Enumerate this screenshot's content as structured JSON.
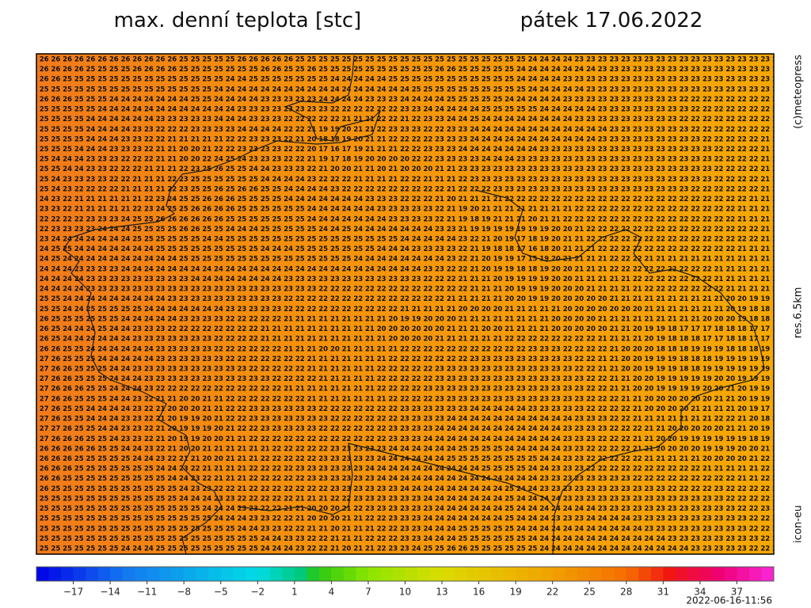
{
  "header": {
    "title": "max. denní teplota [stc]",
    "date": "pátek 17.06.2022"
  },
  "side": {
    "credit": "(c)meteopress",
    "resolution": "res.6.5km",
    "model": "icon-eu"
  },
  "map": {
    "rows": [
      "7 26 26 26 26 26 26 26 26 26 26 26 26 25 25 25 25 25 26 26 26 26 26 25 25 25 25 25 25 25 25 25 25 25 25 25 25 25 25 25 25 25 25 24 24 24 24 23 23 23 23 23 23 23 23 23 23 23 23 23 23 23 23 23 2",
      "6 26 26 26 26 25 25 25 25 26 26 26 26 25 25 25 25 25 25 25 26 26 25 25 26 25 25 25 25 25 25 25 25 25 25 26 26 25 25 25 25 25 24 24 24 24 24 24 24 23 23 23 23 23 23 23 23 23 23 23 23 23 23 23 2",
      "6 26 26 25 25 25 25 25 25 25 25 25 25 25 25 25 25 24 24 25 25 25 25 25 25 25 24 24 24 24 24 25 25 25 25 25 25 25 25 25 25 25 24 24 24 24 23 23 23 23 23 23 23 23 23 23 23 23 23 23 23 23 23 23 2",
      "6 25 25 25 25 25 25 25 25 25 25 25 25 25 25 25 24 24 24 24 24 24 24 24 24 24 24 24 24 24 24 24 24 25 25 25 25 25 25 25 25 25 25 24 24 24 24 24 23 23 23 23 23 23 23 23 23 23 23 23 23 23 23 23 2",
      "6 26 26 26 25 25 25 24 24 24 24 24 24 24 25 25 24 24 24 24 23 23 23 23 23 24 24 24 24 23 23 23 24 24 24 24 25 25 25 25 25 24 24 24 24 24 23 23 23 23 23 23 23 23 23 23 22 22 22 22 22 22 22 22 2",
      "6 25 25 25 25 25 24 24 24 24 24 24 24 24 24 24 24 24 23 23 23 23 23 23 23 23 22 22 22 22 22 22 23 23 24 24 24 24 24 25 25 25 25 25 24 24 24 24 24 23 23 23 23 23 23 23 23 22 22 22 22 22 22 22 2",
      "6 25 25 25 25 24 24 24 24 24 24 23 23 23 23 23 24 24 24 23 23 23 22 22 22 22 22 21 21 21 22 22 21 22 23 23 24 24 25 24 24 24 24 24 24 24 24 23 23 23 23 23 23 23 23 23 22 22 22 22 22 22 22 22 2",
      "6 25 25 25 25 24 24 24 24 23 23 22 22 22 23 23 23 23 24 24 24 24 22 22 21 19 19 20 21 21 22 23 23 23 22 22 23 23 24 24 24 24 24 24 24 24 24 24 24 24 23 23 23 23 23 23 23 22 22 22 22 22 22 22 2",
      "5 25 25 25 25 24 24 24 23 23 22 22 21 21 21 21 21 22 22 23 23 23 22 21 20 18 18 19 20 21 21 22 22 22 22 23 23 23 24 24 24 24 24 24 24 24 24 24 24 23 23 23 23 23 23 23 23 23 22 22 22 22 22 21 2",
      "5 25 25 25 24 24 24 23 23 23 22 21 21 20 20 21 22 22 23 23 23 23 22 22 20 17 16 17 19 21 21 21 22 22 23 23 23 24 24 24 24 24 24 24 23 23 23 23 23 23 23 23 23 23 23 23 23 23 23 22 22 22 22 21 2",
      "5 25 24 24 24 23 23 23 22 22 22 21 21 20 20 22 24 25 24 23 23 23 22 22 21 19 17 18 19 20 20 20 20 22 22 23 23 23 23 24 24 24 23 23 23 23 23 23 23 23 23 23 23 23 23 23 23 23 23 22 22 22 22 21 2",
      "4 25 25 24 24 23 23 22 22 22 21 21 21 22 23 25 26 25 25 24 24 23 23 23 22 21 20 20 21 21 20 21 20 20 20 21 21 23 23 23 23 23 23 23 23 23 23 23 23 23 23 23 23 23 23 23 23 23 23 22 22 22 22 21 2",
      "4 25 24 23 23 23 23 22 22 21 21 21 22 23 25 25 25 25 25 25 24 24 24 24 23 22 22 22 21 21 21 21 22 22 21 21 21 22 23 23 23 23 23 23 23 23 23 23 23 23 23 23 23 23 23 23 23 23 23 22 22 22 22 21 2",
      "4 25 24 23 22 22 22 22 21 21 21 21 22 23 25 25 26 25 26 26 25 25 24 24 24 24 23 22 22 22 22 22 22 22 22 22 21 22 22 22 23 23 23 23 23 23 23 23 23 23 23 23 23 23 23 23 23 22 22 22 22 22 22 21 2",
      "4 24 23 22 21 21 21 21 21 21 22 23 24 25 25 26 26 26 25 25 25 25 24 24 24 24 24 24 24 23 23 23 22 22 22 21 20 21 21 21 21 22 22 22 22 22 22 22 22 22 22 22 22 22 22 22 22 22 22 22 22 22 21 21 2",
      "3 23 23 22 21 21 21 21 21 22 23 24 25 25 26 26 26 26 25 25 25 25 25 25 24 24 24 24 24 24 23 23 23 23 23 22 21 19 20 21 21 21 21 21 21 21 21 22 22 22 22 22 22 22 22 22 22 22 22 22 22 21 21 21 2",
      "3 22 22 22 22 23 23 23 24 25 25 26 26 26 26 26 26 25 25 25 25 25 25 25 24 24 24 24 24 24 24 23 23 23 23 22 21 19 18 19 21 21 21 20 21 21 22 22 22 22 22 22 22 22 22 22 22 22 22 22 22 21 21 21 2",
      "3 22 23 23 23 23 24 24 24 25 25 25 25 26 26 25 25 24 24 24 25 25 25 25 25 24 24 25 24 24 24 24 24 24 24 23 23 21 19 19 19 19 19 19 19 20 20 21 22 22 22 22 22 22 22 22 22 22 22 22 22 22 22 21 2",
      "3 23 24 24 24 24 24 24 24 25 25 25 25 25 25 24 24 25 25 25 25 25 25 25 25 25 25 25 25 25 25 25 24 24 24 24 24 23 22 21 20 19 17 18 19 20 21 21 22 22 22 22 22 22 22 22 22 22 22 22 22 22 22 21 2",
      "4 24 25 25 24 24 24 24 24 24 24 25 25 25 25 25 25 25 25 25 24 24 24 25 25 25 25 25 25 25 24 24 24 23 23 23 23 22 21 19 18 18 17 16 18 20 21 21 21 22 22 22 22 22 22 22 22 22 22 22 22 21 21 21 2",
      "4 24 25 24 24 24 24 24 24 24 24 24 24 25 25 25 25 25 25 25 25 25 25 25 25 25 25 25 24 24 24 24 24 24 24 24 23 22 21 20 19 19 17 15 19 20 21 21 21 21 22 22 22 21 21 21 21 21 21 21 21 21 21 21 2",
      "3 24 24 24 23 23 23 23 24 24 24 24 24 24 24 24 24 24 24 24 24 24 24 24 24 24 24 24 24 24 24 24 24 24 23 23 22 22 21 20 19 19 18 18 19 20 20 21 21 21 22 22 22 22 22 22 22 22 22 21 21 21 21 21 2",
      "3 24 24 24 24 23 23 23 23 23 23 23 23 23 24 24 24 24 24 24 24 24 23 23 23 23 23 23 23 23 23 23 23 23 22 22 22 21 21 21 20 19 19 19 19 20 20 21 21 21 21 21 22 22 22 22 22 22 22 21 21 21 21 21 2",
      "4 24 24 24 24 23 23 23 23 23 23 23 23 23 23 23 23 23 23 23 23 23 23 23 23 22 22 22 22 22 22 22 22 22 22 22 22 22 21 21 21 20 19 19 19 20 20 20 21 21 21 21 21 22 22 22 22 22 22 22 21 21 21 21 2",
      "5 25 25 24 24 24 24 24 24 24 24 24 23 23 23 23 23 23 23 23 23 23 22 22 22 22 22 22 22 22 22 22 22 22 22 22 21 21 21 21 21 20 20 19 19 20 20 20 20 20 21 21 21 21 21 21 21 21 21 21 20 20 19 19 1",
      "5 25 25 24 24 25 25 25 25 25 24 24 24 24 24 24 24 23 23 23 23 23 22 22 22 22 22 22 22 22 22 22 21 21 21 21 21 20 20 20 20 21 21 21 21 21 20 20 20 20 20 20 20 21 21 21 21 21 21 21 20 19 18 18 1",
      "6 26 25 25 25 25 25 25 24 24 24 24 24 23 23 23 23 22 22 22 22 22 21 21 21 21 21 21 21 21 21 20 19 19 20 20 20 21 21 21 21 21 21 21 21 20 20 20 20 21 21 21 21 21 21 21 21 21 20 20 20 19 18 18 1",
      "6 26 25 24 24 24 25 24 24 23 23 23 22 22 22 22 22 22 22 22 21 21 21 21 21 21 21 21 21 21 20 20 20 20 20 20 21 21 21 20 20 21 21 21 21 20 20 20 20 20 21 21 20 19 19 18 17 17 17 18 18 18 17 17 1",
      "6 26 25 24 24 24 24 24 24 23 23 23 23 23 23 23 22 22 22 22 21 21 21 21 21 21 21 21 21 21 21 20 20 20 20 21 21 21 21 21 21 22 22 22 22 22 22 22 22 21 21 21 21 20 19 18 18 18 17 17 18 18 17 17 1",
      "6 26 26 25 25 24 24 24 24 24 24 23 23 23 23 23 22 22 22 22 22 22 21 21 21 20 20 21 21 21 21 21 22 22 22 22 22 22 22 22 22 22 22 23 23 23 22 22 22 22 21 20 20 20 18 18 18 19 19 19 18 18 18 19 1",
      "7 27 26 25 25 25 24 24 24 24 24 23 23 23 23 23 23 22 22 22 22 22 22 22 21 21 21 21 21 21 21 22 22 22 22 22 22 22 23 23 23 23 23 23 23 23 23 22 22 21 21 20 20 19 19 19 18 18 18 19 19 19 19 19 1",
      "7 27 26 26 25 25 25 24 24 23 23 23 23 23 23 23 23 23 23 22 22 22 22 22 21 21 21 21 21 21 22 22 22 22 22 23 23 23 23 23 23 23 23 23 23 23 23 22 22 21 21 20 20 19 19 19 18 18 19 19 19 19 19 19 1",
      "7 27 26 26 25 25 25 24 24 24 23 23 23 23 23 23 23 23 23 23 23 22 22 22 22 21 21 21 21 21 22 22 22 22 22 23 23 23 23 23 23 23 23 23 23 23 23 23 22 22 21 21 20 20 19 19 19 19 19 20 20 19 19 19 1",
      "7 27 26 26 26 25 25 24 24 24 23 22 22 22 22 22 22 22 22 22 22 22 21 21 21 21 21 21 21 21 22 22 22 22 23 23 23 23 23 23 23 23 23 23 23 23 23 23 22 22 21 21 20 20 19 19 19 19 20 20 21 20 19 19 1",
      "7 27 26 26 25 25 25 24 24 23 22 21 21 20 20 21 21 22 22 22 22 22 22 22 21 21 21 21 21 21 21 22 22 22 22 23 23 23 23 23 23 23 23 23 23 23 23 23 22 22 22 21 21 20 20 20 20 20 20 21 21 20 19 19 1",
      "7 27 26 25 25 24 24 24 24 23 22 21 20 20 20 21 21 22 22 23 23 23 23 23 23 22 22 22 22 22 22 22 23 23 23 23 23 23 24 24 24 24 24 23 23 23 23 23 22 22 22 22 21 20 20 20 20 21 21 21 21 20 19 17 1",
      "7 27 26 25 25 24 24 24 23 23 22 21 20 19 19 20 21 22 22 23 23 23 23 23 23 23 22 22 22 22 22 22 23 23 23 23 24 24 24 24 24 24 24 24 24 24 24 23 23 23 22 22 21 21 21 21 21 21 21 22 22 21 20 18 2",
      "7 27 27 26 25 25 24 24 23 23 22 21 20 19 19 19 20 21 22 22 23 23 23 23 23 22 22 22 22 22 22 23 23 23 23 24 24 24 24 24 24 24 24 24 24 24 23 23 23 23 22 22 22 21 21 20 20 20 20 20 21 21 20 19 1",
      "7 27 26 26 26 25 25 24 23 23 22 21 20 19 19 20 20 21 21 22 22 22 22 22 22 22 22 22 22 22 22 23 23 23 24 24 24 24 24 24 24 24 24 24 24 24 23 23 23 22 22 22 21 21 20 20 19 19 19 19 19 19 18 19 1",
      "7 26 26 26 26 26 25 25 24 24 23 22 21 20 20 21 21 21 21 21 21 22 22 22 22 22 23 23 23 23 23 24 24 24 24 24 24 25 25 25 25 24 24 24 24 24 23 23 22 22 22 22 21 21 20 20 20 20 19 19 19 20 20 21 2",
      "7 26 26 26 25 25 25 25 25 24 24 23 22 21 21 20 20 21 21 21 22 22 22 22 22 23 23 23 23 23 24 24 24 24 24 24 25 25 25 25 25 25 25 25 24 24 23 23 22 22 22 22 22 21 21 21 21 21 20 20 20 20 21 22 2",
      "6 26 26 26 25 25 25 25 25 25 25 24 24 23 22 21 21 21 21 22 22 22 22 23 23 23 23 23 23 24 24 24 24 24 24 24 24 24 24 25 25 25 25 24 24 23 23 23 22 22 22 22 22 22 22 22 22 22 21 21 21 21 21 22 2",
      "6 26 26 25 25 25 25 25 25 25 25 25 24 24 23 22 21 21 21 22 22 22 22 22 23 23 23 23 23 23 24 24 24 24 24 24 24 24 24 24 24 24 24 24 23 23 23 23 23 23 23 23 22 22 22 22 22 22 22 22 22 21 21 22 2",
      "6 26 25 25 25 25 25 25 25 25 25 25 25 24 23 23 22 22 21 22 22 22 22 22 22 22 23 23 23 23 23 23 24 24 24 24 24 24 24 24 24 25 24 24 23 23 23 23 23 23 23 23 23 23 23 22 22 22 22 23 22 22 22 22 2",
      "5 25 25 25 25 25 25 25 25 25 25 25 25 24 24 24 23 23 22 22 22 22 22 21 21 21 22 22 23 23 23 23 23 23 24 24 24 24 24 24 24 25 24 24 24 24 23 23 23 23 23 23 23 23 23 23 23 23 23 23 22 22 22 22 2",
      "5 25 25 25 25 25 25 25 25 25 25 25 25 25 25 24 24 24 23 23 22 22 21 21 20 20 20 21 22 23 23 23 23 23 23 24 24 24 24 24 24 25 24 24 24 24 24 24 24 23 23 23 23 23 23 23 23 23 23 23 23 22 22 23 2",
      "6 25 25 25 25 25 25 25 25 25 25 25 25 25 25 25 24 24 24 23 23 22 22 21 20 20 20 21 21 22 22 23 23 23 24 24 24 24 24 24 24 25 24 24 24 23 23 23 24 24 24 24 23 23 23 23 23 23 23 23 23 23 22 22 2",
      "5 25 25 25 25 25 25 25 25 25 25 25 25 25 25 25 25 25 24 24 23 23 22 22 21 21 20 21 21 21 22 22 23 23 24 24 24 25 25 25 25 25 24 24 24 24 24 24 24 24 24 24 24 23 23 23 23 23 23 23 23 23 22 22 2",
      "5 25 25 25 25 25 25 25 25 25 25 25 25 25 25 25 25 25 25 25 24 24 23 23 22 22 21 21 21 22 22 22 23 23 24 24 24 25 25 25 25 25 25 24 24 24 24 24 24 24 24 24 24 24 24 23 23 23 23 23 23 23 23 22 2",
      "5 25 25 25 25 25 25 25 24 24 24 25 25 25 25 25 25 25 25 25 24 24 24 23 22 22 21 20 21 21 22 23 23 24 25 25 26 26 25 25 25 25 25 25 24 24 24 24 24 24 24 24 24 24 24 24 24 23 23 23 23 23 22 22 2"
    ]
  },
  "colorbar": {
    "lim": [
      -20,
      40
    ],
    "ticks": [
      {
        "value": -17,
        "label": "−17"
      },
      {
        "value": -14,
        "label": "−14"
      },
      {
        "value": -11,
        "label": "−11"
      },
      {
        "value": -8,
        "label": "−8"
      },
      {
        "value": -5,
        "label": "−5"
      },
      {
        "value": -2,
        "label": "−2"
      },
      1,
      4,
      7,
      10,
      13,
      16,
      19,
      22,
      25,
      28,
      31,
      34,
      37
    ]
  },
  "footer": {
    "timestamp": "2022-06-16-11:56"
  }
}
